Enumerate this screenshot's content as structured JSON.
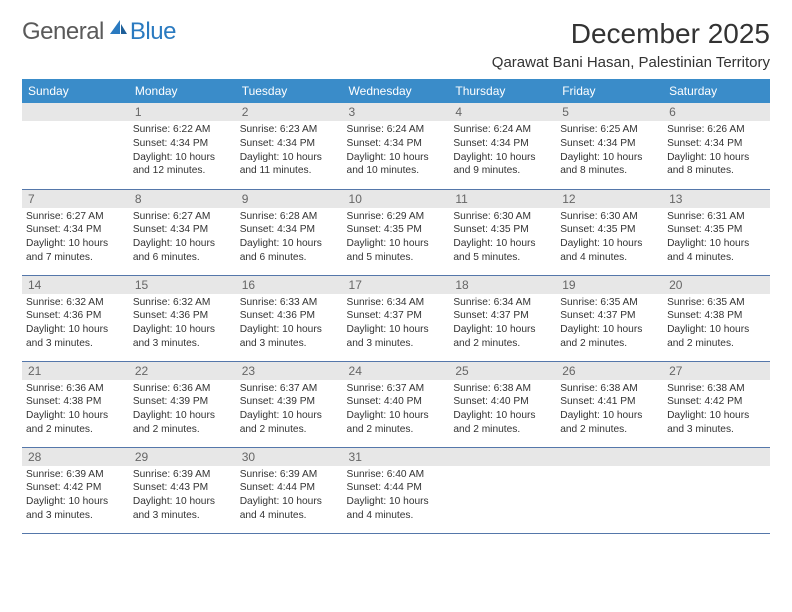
{
  "brand": {
    "part1": "General",
    "part2": "Blue"
  },
  "title": "December 2025",
  "location": "Qarawat Bani Hasan, Palestinian Territory",
  "colors": {
    "header_bg": "#3a8cc9",
    "header_text": "#ffffff",
    "daynum_bg": "#e7e7e7",
    "daynum_text": "#666666",
    "body_text": "#333333",
    "rule": "#5577aa",
    "logo_blue": "#2a7ac0"
  },
  "weekdays": [
    "Sunday",
    "Monday",
    "Tuesday",
    "Wednesday",
    "Thursday",
    "Friday",
    "Saturday"
  ],
  "weeks": [
    [
      {
        "n": "",
        "sr": "",
        "ss": "",
        "dl": ""
      },
      {
        "n": "1",
        "sr": "Sunrise: 6:22 AM",
        "ss": "Sunset: 4:34 PM",
        "dl": "Daylight: 10 hours and 12 minutes."
      },
      {
        "n": "2",
        "sr": "Sunrise: 6:23 AM",
        "ss": "Sunset: 4:34 PM",
        "dl": "Daylight: 10 hours and 11 minutes."
      },
      {
        "n": "3",
        "sr": "Sunrise: 6:24 AM",
        "ss": "Sunset: 4:34 PM",
        "dl": "Daylight: 10 hours and 10 minutes."
      },
      {
        "n": "4",
        "sr": "Sunrise: 6:24 AM",
        "ss": "Sunset: 4:34 PM",
        "dl": "Daylight: 10 hours and 9 minutes."
      },
      {
        "n": "5",
        "sr": "Sunrise: 6:25 AM",
        "ss": "Sunset: 4:34 PM",
        "dl": "Daylight: 10 hours and 8 minutes."
      },
      {
        "n": "6",
        "sr": "Sunrise: 6:26 AM",
        "ss": "Sunset: 4:34 PM",
        "dl": "Daylight: 10 hours and 8 minutes."
      }
    ],
    [
      {
        "n": "7",
        "sr": "Sunrise: 6:27 AM",
        "ss": "Sunset: 4:34 PM",
        "dl": "Daylight: 10 hours and 7 minutes."
      },
      {
        "n": "8",
        "sr": "Sunrise: 6:27 AM",
        "ss": "Sunset: 4:34 PM",
        "dl": "Daylight: 10 hours and 6 minutes."
      },
      {
        "n": "9",
        "sr": "Sunrise: 6:28 AM",
        "ss": "Sunset: 4:34 PM",
        "dl": "Daylight: 10 hours and 6 minutes."
      },
      {
        "n": "10",
        "sr": "Sunrise: 6:29 AM",
        "ss": "Sunset: 4:35 PM",
        "dl": "Daylight: 10 hours and 5 minutes."
      },
      {
        "n": "11",
        "sr": "Sunrise: 6:30 AM",
        "ss": "Sunset: 4:35 PM",
        "dl": "Daylight: 10 hours and 5 minutes."
      },
      {
        "n": "12",
        "sr": "Sunrise: 6:30 AM",
        "ss": "Sunset: 4:35 PM",
        "dl": "Daylight: 10 hours and 4 minutes."
      },
      {
        "n": "13",
        "sr": "Sunrise: 6:31 AM",
        "ss": "Sunset: 4:35 PM",
        "dl": "Daylight: 10 hours and 4 minutes."
      }
    ],
    [
      {
        "n": "14",
        "sr": "Sunrise: 6:32 AM",
        "ss": "Sunset: 4:36 PM",
        "dl": "Daylight: 10 hours and 3 minutes."
      },
      {
        "n": "15",
        "sr": "Sunrise: 6:32 AM",
        "ss": "Sunset: 4:36 PM",
        "dl": "Daylight: 10 hours and 3 minutes."
      },
      {
        "n": "16",
        "sr": "Sunrise: 6:33 AM",
        "ss": "Sunset: 4:36 PM",
        "dl": "Daylight: 10 hours and 3 minutes."
      },
      {
        "n": "17",
        "sr": "Sunrise: 6:34 AM",
        "ss": "Sunset: 4:37 PM",
        "dl": "Daylight: 10 hours and 3 minutes."
      },
      {
        "n": "18",
        "sr": "Sunrise: 6:34 AM",
        "ss": "Sunset: 4:37 PM",
        "dl": "Daylight: 10 hours and 2 minutes."
      },
      {
        "n": "19",
        "sr": "Sunrise: 6:35 AM",
        "ss": "Sunset: 4:37 PM",
        "dl": "Daylight: 10 hours and 2 minutes."
      },
      {
        "n": "20",
        "sr": "Sunrise: 6:35 AM",
        "ss": "Sunset: 4:38 PM",
        "dl": "Daylight: 10 hours and 2 minutes."
      }
    ],
    [
      {
        "n": "21",
        "sr": "Sunrise: 6:36 AM",
        "ss": "Sunset: 4:38 PM",
        "dl": "Daylight: 10 hours and 2 minutes."
      },
      {
        "n": "22",
        "sr": "Sunrise: 6:36 AM",
        "ss": "Sunset: 4:39 PM",
        "dl": "Daylight: 10 hours and 2 minutes."
      },
      {
        "n": "23",
        "sr": "Sunrise: 6:37 AM",
        "ss": "Sunset: 4:39 PM",
        "dl": "Daylight: 10 hours and 2 minutes."
      },
      {
        "n": "24",
        "sr": "Sunrise: 6:37 AM",
        "ss": "Sunset: 4:40 PM",
        "dl": "Daylight: 10 hours and 2 minutes."
      },
      {
        "n": "25",
        "sr": "Sunrise: 6:38 AM",
        "ss": "Sunset: 4:40 PM",
        "dl": "Daylight: 10 hours and 2 minutes."
      },
      {
        "n": "26",
        "sr": "Sunrise: 6:38 AM",
        "ss": "Sunset: 4:41 PM",
        "dl": "Daylight: 10 hours and 2 minutes."
      },
      {
        "n": "27",
        "sr": "Sunrise: 6:38 AM",
        "ss": "Sunset: 4:42 PM",
        "dl": "Daylight: 10 hours and 3 minutes."
      }
    ],
    [
      {
        "n": "28",
        "sr": "Sunrise: 6:39 AM",
        "ss": "Sunset: 4:42 PM",
        "dl": "Daylight: 10 hours and 3 minutes."
      },
      {
        "n": "29",
        "sr": "Sunrise: 6:39 AM",
        "ss": "Sunset: 4:43 PM",
        "dl": "Daylight: 10 hours and 3 minutes."
      },
      {
        "n": "30",
        "sr": "Sunrise: 6:39 AM",
        "ss": "Sunset: 4:44 PM",
        "dl": "Daylight: 10 hours and 4 minutes."
      },
      {
        "n": "31",
        "sr": "Sunrise: 6:40 AM",
        "ss": "Sunset: 4:44 PM",
        "dl": "Daylight: 10 hours and 4 minutes."
      },
      {
        "n": "",
        "sr": "",
        "ss": "",
        "dl": ""
      },
      {
        "n": "",
        "sr": "",
        "ss": "",
        "dl": ""
      },
      {
        "n": "",
        "sr": "",
        "ss": "",
        "dl": ""
      }
    ]
  ]
}
